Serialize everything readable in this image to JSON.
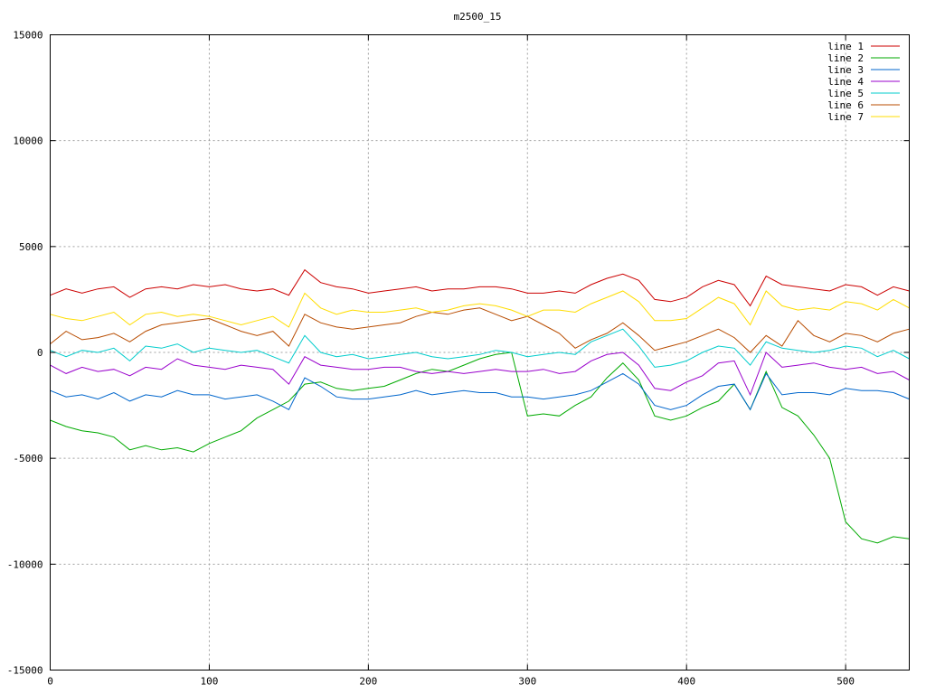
{
  "chart_data": {
    "type": "line",
    "title": "m2500_15",
    "xlabel": "",
    "ylabel": "",
    "xlim": [
      0,
      540
    ],
    "ylim": [
      -15000,
      15000
    ],
    "x_ticks": [
      0,
      100,
      200,
      300,
      400,
      500
    ],
    "y_ticks": [
      -15000,
      -10000,
      -5000,
      0,
      5000,
      10000,
      15000
    ],
    "grid": true,
    "legend_position": "top-right",
    "x": [
      0,
      10,
      20,
      30,
      40,
      50,
      60,
      70,
      80,
      90,
      100,
      110,
      120,
      130,
      140,
      150,
      160,
      170,
      180,
      190,
      200,
      210,
      220,
      230,
      240,
      250,
      260,
      270,
      280,
      290,
      300,
      310,
      320,
      330,
      340,
      350,
      360,
      370,
      380,
      390,
      400,
      410,
      420,
      430,
      440,
      450,
      460,
      470,
      480,
      490,
      500,
      510,
      520,
      530,
      540
    ],
    "series": [
      {
        "name": "line 1",
        "color": "#cc0000",
        "values": [
          2700,
          3000,
          2800,
          3000,
          3100,
          2600,
          3000,
          3100,
          3000,
          3200,
          3100,
          3200,
          3000,
          2900,
          3000,
          2700,
          3900,
          3300,
          3100,
          3000,
          2800,
          2900,
          3000,
          3100,
          2900,
          3000,
          3000,
          3100,
          3100,
          3000,
          2800,
          2800,
          2900,
          2800,
          3200,
          3500,
          3700,
          3400,
          2500,
          2400,
          2600,
          3100,
          3400,
          3200,
          2200,
          3600,
          3200,
          3100,
          3000,
          2900,
          3200,
          3100,
          2700,
          3100,
          2900
        ]
      },
      {
        "name": "line 2",
        "color": "#00aa00",
        "values": [
          -3200,
          -3500,
          -3700,
          -3800,
          -4000,
          -4600,
          -4400,
          -4600,
          -4500,
          -4700,
          -4300,
          -4000,
          -3700,
          -3100,
          -2700,
          -2300,
          -1500,
          -1400,
          -1700,
          -1800,
          -1700,
          -1600,
          -1300,
          -1000,
          -800,
          -900,
          -600,
          -300,
          -100,
          0,
          -3000,
          -2900,
          -3000,
          -2500,
          -2100,
          -1200,
          -500,
          -1300,
          -3000,
          -3200,
          -3000,
          -2600,
          -2300,
          -1500,
          -2700,
          -900,
          -2600,
          -3000,
          -3900,
          -5000,
          -8000,
          -8800,
          -9000,
          -8700,
          -8800
        ]
      },
      {
        "name": "line 3",
        "color": "#0066cc",
        "values": [
          -1800,
          -2100,
          -2000,
          -2200,
          -1900,
          -2300,
          -2000,
          -2100,
          -1800,
          -2000,
          -2000,
          -2200,
          -2100,
          -2000,
          -2300,
          -2700,
          -1200,
          -1600,
          -2100,
          -2200,
          -2200,
          -2100,
          -2000,
          -1800,
          -2000,
          -1900,
          -1800,
          -1900,
          -1900,
          -2100,
          -2100,
          -2200,
          -2100,
          -2000,
          -1800,
          -1400,
          -1000,
          -1500,
          -2500,
          -2700,
          -2500,
          -2000,
          -1600,
          -1500,
          -2700,
          -1000,
          -2000,
          -1900,
          -1900,
          -2000,
          -1700,
          -1800,
          -1800,
          -1900,
          -2200
        ]
      },
      {
        "name": "line 4",
        "color": "#9900cc",
        "values": [
          -600,
          -1000,
          -700,
          -900,
          -800,
          -1100,
          -700,
          -800,
          -300,
          -600,
          -700,
          -800,
          -600,
          -700,
          -800,
          -1500,
          -200,
          -600,
          -700,
          -800,
          -800,
          -700,
          -700,
          -900,
          -1000,
          -900,
          -1000,
          -900,
          -800,
          -900,
          -900,
          -800,
          -1000,
          -900,
          -400,
          -100,
          0,
          -600,
          -1700,
          -1800,
          -1400,
          -1100,
          -500,
          -400,
          -2000,
          0,
          -700,
          -600,
          -500,
          -700,
          -800,
          -700,
          -1000,
          -900,
          -1300
        ]
      },
      {
        "name": "line 5",
        "color": "#00cccc",
        "values": [
          100,
          -200,
          100,
          0,
          200,
          -400,
          300,
          200,
          400,
          0,
          200,
          100,
          0,
          100,
          -200,
          -500,
          800,
          0,
          -200,
          -100,
          -300,
          -200,
          -100,
          0,
          -200,
          -300,
          -200,
          -100,
          100,
          0,
          -200,
          -100,
          0,
          -100,
          500,
          800,
          1100,
          300,
          -700,
          -600,
          -400,
          0,
          300,
          200,
          -600,
          500,
          200,
          100,
          0,
          100,
          300,
          200,
          -200,
          100,
          -300
        ]
      },
      {
        "name": "line 6",
        "color": "#b84c00",
        "values": [
          400,
          1000,
          600,
          700,
          900,
          500,
          1000,
          1300,
          1400,
          1500,
          1600,
          1300,
          1000,
          800,
          1000,
          300,
          1800,
          1400,
          1200,
          1100,
          1200,
          1300,
          1400,
          1700,
          1900,
          1800,
          2000,
          2100,
          1800,
          1500,
          1700,
          1300,
          900,
          200,
          600,
          900,
          1400,
          800,
          100,
          300,
          500,
          800,
          1100,
          700,
          0,
          800,
          300,
          1500,
          800,
          500,
          900,
          800,
          500,
          900,
          1100
        ]
      },
      {
        "name": "line 7",
        "color": "#ffdd00",
        "values": [
          1800,
          1600,
          1500,
          1700,
          1900,
          1300,
          1800,
          1900,
          1700,
          1800,
          1700,
          1500,
          1300,
          1500,
          1700,
          1200,
          2800,
          2100,
          1800,
          2000,
          1900,
          1900,
          2000,
          2100,
          1900,
          2000,
          2200,
          2300,
          2200,
          2000,
          1700,
          2000,
          2000,
          1900,
          2300,
          2600,
          2900,
          2400,
          1500,
          1500,
          1600,
          2100,
          2600,
          2300,
          1300,
          2900,
          2200,
          2000,
          2100,
          2000,
          2400,
          2300,
          2000,
          2500,
          2100
        ]
      }
    ]
  }
}
